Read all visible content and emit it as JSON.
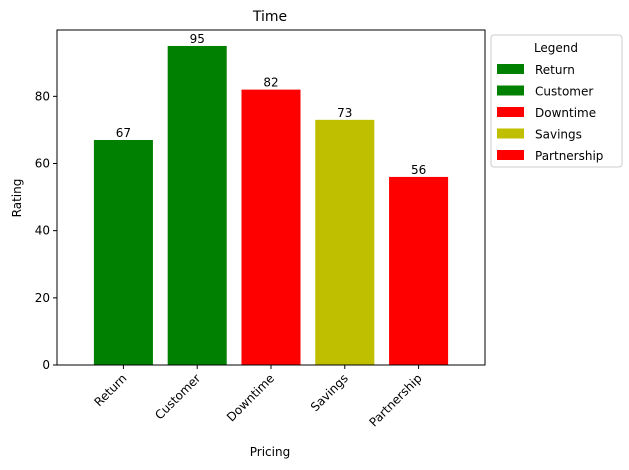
{
  "chart_data": {
    "type": "bar",
    "title": "Time",
    "xlabel": "Pricing",
    "ylabel": "Rating",
    "categories": [
      "Return",
      "Customer",
      "Downtime",
      "Savings",
      "Partnership"
    ],
    "values": [
      67,
      95,
      82,
      73,
      56
    ],
    "colors": [
      "#008000",
      "#008000",
      "#ff0000",
      "#bfbf00",
      "#ff0000"
    ],
    "ylim": [
      0,
      99.75
    ],
    "yticks": [
      0,
      20,
      40,
      60,
      80
    ],
    "grid": false,
    "legend": {
      "title": "Legend",
      "placement": "outside-right",
      "entries": [
        "Return",
        "Customer",
        "Downtime",
        "Savings",
        "Partnership"
      ]
    }
  }
}
